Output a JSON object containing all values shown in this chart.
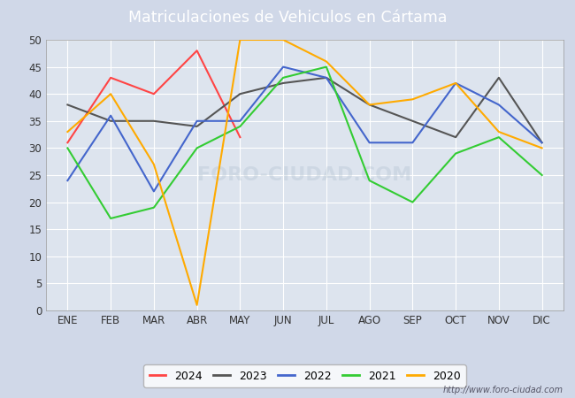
{
  "title": "Matriculaciones de Vehiculos en Cártama",
  "months": [
    "ENE",
    "FEB",
    "MAR",
    "ABR",
    "MAY",
    "JUN",
    "JUL",
    "AGO",
    "SEP",
    "OCT",
    "NOV",
    "DIC"
  ],
  "series": {
    "2024": {
      "color": "#ff4444",
      "values": [
        31,
        43,
        40,
        48,
        32,
        null,
        null,
        null,
        null,
        null,
        null,
        null
      ]
    },
    "2023": {
      "color": "#555555",
      "values": [
        38,
        35,
        35,
        34,
        40,
        42,
        43,
        38,
        35,
        32,
        43,
        31
      ]
    },
    "2022": {
      "color": "#4466cc",
      "values": [
        24,
        36,
        22,
        35,
        35,
        45,
        43,
        31,
        31,
        42,
        38,
        31
      ]
    },
    "2021": {
      "color": "#33cc33",
      "values": [
        30,
        17,
        19,
        30,
        34,
        43,
        45,
        24,
        20,
        29,
        32,
        25
      ]
    },
    "2020": {
      "color": "#ffaa00",
      "values": [
        33,
        40,
        27,
        1,
        50,
        50,
        46,
        38,
        39,
        42,
        33,
        30
      ]
    }
  },
  "ylim": [
    0,
    50
  ],
  "yticks": [
    0,
    5,
    10,
    15,
    20,
    25,
    30,
    35,
    40,
    45,
    50
  ],
  "outer_bg_color": "#d0d8e8",
  "plot_bg_color": "#dde4ee",
  "grid_color": "#ffffff",
  "title_bg_color": "#5577aa",
  "title_text_color": "#ffffff",
  "url_text": "http://www.foro-ciudad.com",
  "watermark_text": "FORO-CIUDAD.COM",
  "watermark_color": "#aabbcc",
  "watermark_alpha": 0.3,
  "legend_order": [
    "2024",
    "2023",
    "2022",
    "2021",
    "2020"
  ]
}
